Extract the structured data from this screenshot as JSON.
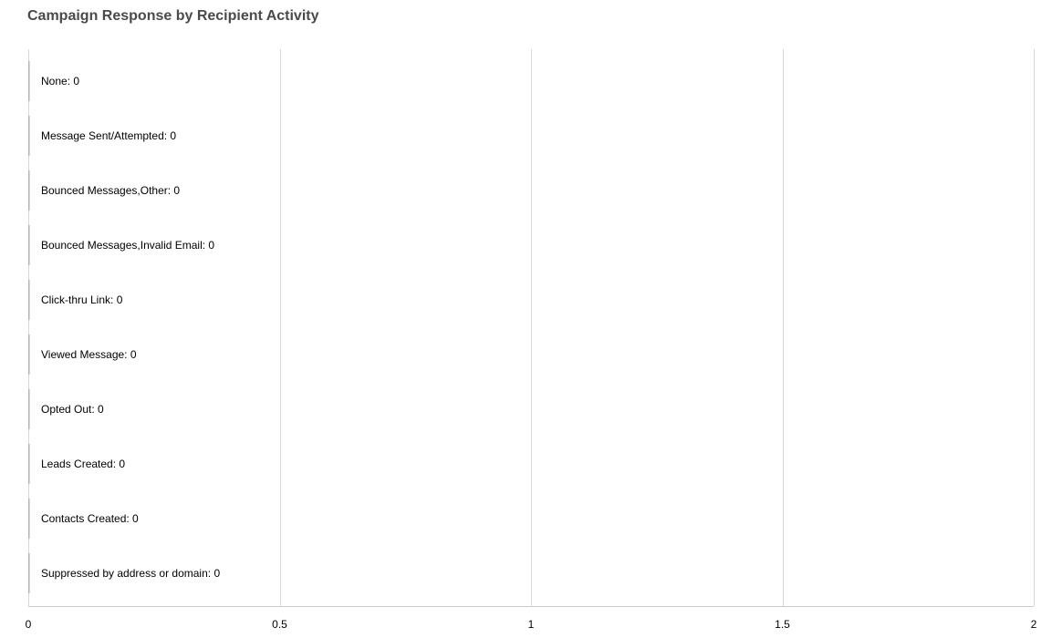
{
  "chart_data": {
    "type": "bar",
    "orientation": "horizontal",
    "title": "Campaign Response by Recipient Activity",
    "categories": [
      "None",
      "Message Sent/Attempted",
      "Bounced Messages,Other",
      "Bounced Messages,Invalid Email",
      "Click-thru Link",
      "Viewed Message",
      "Opted Out",
      "Leads Created",
      "Contacts Created",
      "Suppressed by address or domain"
    ],
    "values": [
      0,
      0,
      0,
      0,
      0,
      0,
      0,
      0,
      0,
      0
    ],
    "xlim": [
      0,
      2
    ],
    "xticks": [
      "0",
      "0.5",
      "1",
      "1.5",
      "2"
    ],
    "xtick_values": [
      0,
      0.5,
      1,
      1.5,
      2
    ],
    "grid": true,
    "legend": "none",
    "colors": {
      "grid": "#d9d9d9",
      "axis": "#cccccc",
      "bar": "#b3b3b3",
      "title": "#4a4a4a"
    }
  }
}
